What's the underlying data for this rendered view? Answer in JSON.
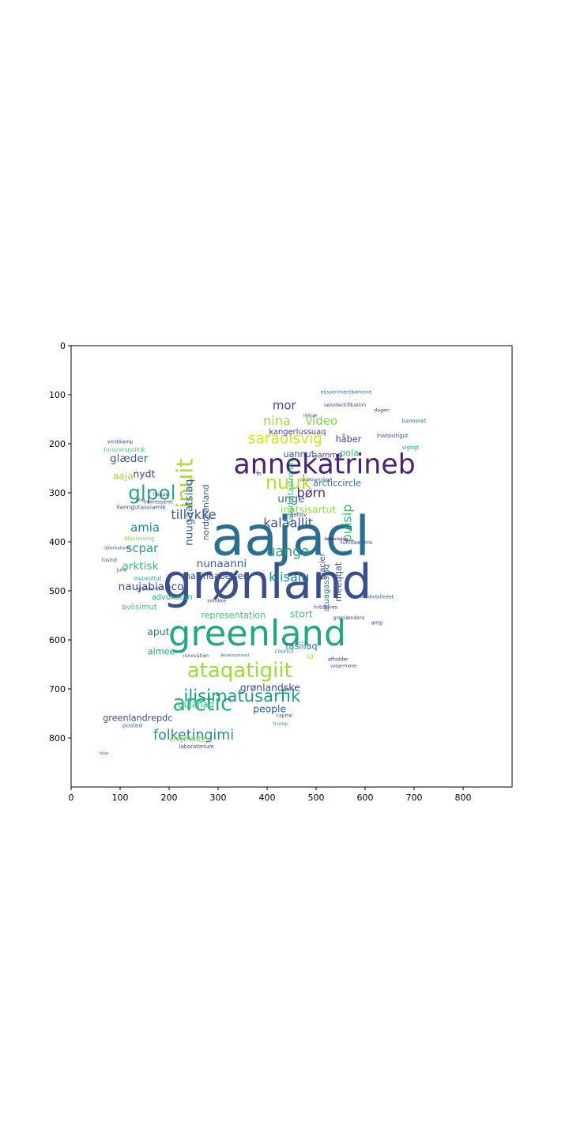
{
  "chart_data": {
    "type": "wordcloud",
    "title": "",
    "xlabel": "",
    "ylabel": "",
    "xlim": [
      0,
      900
    ],
    "ylim": [
      900,
      0
    ],
    "xticks": [
      0,
      100,
      200,
      300,
      400,
      500,
      600,
      700,
      800
    ],
    "yticks": [
      0,
      100,
      200,
      300,
      400,
      500,
      600,
      700,
      800
    ],
    "grid": false,
    "legend": "none",
    "background_color": "#ffffff",
    "colormap": "viridis",
    "words": [
      {
        "text": "aajacl",
        "x": 448,
        "y": 390,
        "size": 110,
        "color": "#2a6f8f",
        "rot": 0
      },
      {
        "text": "grønland",
        "x": 400,
        "y": 483,
        "size": 96,
        "color": "#3b4f8a",
        "rot": 0
      },
      {
        "text": "greenland",
        "x": 380,
        "y": 587,
        "size": 72,
        "color": "#25a585",
        "rot": 0
      },
      {
        "text": "annekatrineb",
        "x": 517,
        "y": 243,
        "size": 56,
        "color": "#482475",
        "rot": 0
      },
      {
        "text": "arctic",
        "x": 268,
        "y": 730,
        "size": 44,
        "color": "#2bb07f",
        "rot": 0
      },
      {
        "text": "ataqatigiit",
        "x": 344,
        "y": 663,
        "size": 42,
        "color": "#9dd93b",
        "rot": 0
      },
      {
        "text": "inuit",
        "x": 232,
        "y": 281,
        "size": 46,
        "color": "#a8db34",
        "rot": 90
      },
      {
        "text": "glpol",
        "x": 165,
        "y": 300,
        "size": 40,
        "color": "#2ea87d",
        "rot": 0
      },
      {
        "text": "nuuk",
        "x": 444,
        "y": 279,
        "size": 38,
        "color": "#b5de2b",
        "rot": 0
      },
      {
        "text": "ilisimatusarfik",
        "x": 349,
        "y": 714,
        "size": 34,
        "color": "#1f9a8a",
        "rot": 0
      },
      {
        "text": "saraolsvig",
        "x": 437,
        "y": 190,
        "size": 30,
        "color": "#d8e219",
        "rot": 0
      },
      {
        "text": "folketingimi",
        "x": 250,
        "y": 795,
        "size": 28,
        "color": "#2c8a8d",
        "rot": 0
      },
      {
        "text": "nina",
        "x": 420,
        "y": 153,
        "size": 26,
        "color": "#a2d939",
        "rot": 0
      },
      {
        "text": "uanga",
        "x": 443,
        "y": 421,
        "size": 28,
        "color": "#2f9e83",
        "rot": 0
      },
      {
        "text": "kalaallit",
        "x": 443,
        "y": 361,
        "size": 26,
        "color": "#3c5588",
        "rot": 0
      },
      {
        "text": "børn",
        "x": 490,
        "y": 300,
        "size": 26,
        "color": "#482878",
        "rot": 0
      },
      {
        "text": "mor",
        "x": 435,
        "y": 122,
        "size": 24,
        "color": "#404688",
        "rot": 0
      },
      {
        "text": "video",
        "x": 511,
        "y": 153,
        "size": 24,
        "color": "#7fd34e",
        "rot": 0
      },
      {
        "text": "puisip",
        "x": 563,
        "y": 362,
        "size": 26,
        "color": "#3aba76",
        "rot": 90
      },
      {
        "text": "tillykke",
        "x": 250,
        "y": 344,
        "size": 26,
        "color": "#38598c",
        "rot": 0
      },
      {
        "text": "nuugaatsiaq",
        "x": 241,
        "y": 340,
        "size": 22,
        "color": "#31688e",
        "rot": 90
      },
      {
        "text": "nunaanni",
        "x": 307,
        "y": 445,
        "size": 22,
        "color": "#365d8d",
        "rot": 0
      },
      {
        "text": "kiisalu",
        "x": 445,
        "y": 472,
        "size": 26,
        "color": "#23888e",
        "rot": 0
      },
      {
        "text": "amia",
        "x": 151,
        "y": 371,
        "size": 24,
        "color": "#25838e",
        "rot": 0
      },
      {
        "text": "scpar",
        "x": 145,
        "y": 413,
        "size": 24,
        "color": "#1f978b",
        "rot": 0
      },
      {
        "text": "naujabianco",
        "x": 163,
        "y": 492,
        "size": 22,
        "color": "#404387",
        "rot": 0
      },
      {
        "text": "arktisk",
        "x": 141,
        "y": 450,
        "size": 22,
        "color": "#35b779",
        "rot": 0
      },
      {
        "text": "glæder",
        "x": 118,
        "y": 231,
        "size": 22,
        "color": "#365c8d",
        "rot": 0
      },
      {
        "text": "aaja",
        "x": 106,
        "y": 265,
        "size": 20,
        "color": "#a0da39",
        "rot": 0
      },
      {
        "text": "nydt",
        "x": 149,
        "y": 261,
        "size": 20,
        "color": "#404387",
        "rot": 0
      },
      {
        "text": "unge",
        "x": 449,
        "y": 313,
        "size": 22,
        "color": "#2f6c8e",
        "rot": 0
      },
      {
        "text": "inatsisartut",
        "x": 484,
        "y": 334,
        "size": 20,
        "color": "#8fd744",
        "rot": 0
      },
      {
        "text": "arcticcircle",
        "x": 543,
        "y": 281,
        "size": 18,
        "color": "#2c718e",
        "rot": 0
      },
      {
        "text": "uannut",
        "x": 465,
        "y": 222,
        "size": 18,
        "color": "#375b8d",
        "rot": 0
      },
      {
        "text": "kangerlussuaq",
        "x": 462,
        "y": 177,
        "size": 16,
        "color": "#404588",
        "rot": 0
      },
      {
        "text": "håber",
        "x": 566,
        "y": 191,
        "size": 18,
        "color": "#3e4989",
        "rot": 0
      },
      {
        "text": "pola",
        "x": 568,
        "y": 219,
        "size": 18,
        "color": "#3fbc73",
        "rot": 0
      },
      {
        "text": "aamma",
        "x": 523,
        "y": 224,
        "size": 16,
        "color": "#433e85",
        "rot": 0
      },
      {
        "text": "naturkatastrofen",
        "x": 449,
        "y": 300,
        "size": 16,
        "color": "#33b57a",
        "rot": 90
      },
      {
        "text": "nordgrønland",
        "x": 276,
        "y": 340,
        "size": 17,
        "color": "#375a8c",
        "rot": 90
      },
      {
        "text": "maliinaabelsen",
        "x": 294,
        "y": 470,
        "size": 18,
        "color": "#3a538b",
        "rot": 0
      },
      {
        "text": "glacier",
        "x": 514,
        "y": 450,
        "size": 16,
        "color": "#3f4889",
        "rot": 90
      },
      {
        "text": "atuagassiaq",
        "x": 522,
        "y": 494,
        "size": 16,
        "color": "#2e6e8e",
        "rot": 90
      },
      {
        "text": "meeqqat",
        "x": 546,
        "y": 482,
        "size": 18,
        "color": "#3a548c",
        "rot": 90
      },
      {
        "text": "representation",
        "x": 331,
        "y": 550,
        "size": 18,
        "color": "#45bf70",
        "rot": 0
      },
      {
        "text": "stort",
        "x": 470,
        "y": 547,
        "size": 20,
        "color": "#4ac16d",
        "rot": 0
      },
      {
        "text": "tasiilaq",
        "x": 470,
        "y": 613,
        "size": 18,
        "color": "#2a788e",
        "rot": 0
      },
      {
        "text": "ia",
        "x": 488,
        "y": 635,
        "size": 16,
        "color": "#b8de29",
        "rot": 0
      },
      {
        "text": "advokaten",
        "x": 206,
        "y": 514,
        "size": 16,
        "color": "#25ab82",
        "rot": 0
      },
      {
        "text": "aviisimut",
        "x": 139,
        "y": 534,
        "size": 16,
        "color": "#40bd72",
        "rot": 0
      },
      {
        "text": "aput",
        "x": 178,
        "y": 583,
        "size": 20,
        "color": "#2c738e",
        "rot": 0
      },
      {
        "text": "aimee",
        "x": 184,
        "y": 624,
        "size": 18,
        "color": "#22a884",
        "rot": 0
      },
      {
        "text": "grønlandske",
        "x": 406,
        "y": 697,
        "size": 20,
        "color": "#3f4788",
        "rot": 0
      },
      {
        "text": "people",
        "x": 405,
        "y": 740,
        "size": 20,
        "color": "#365d8d",
        "rot": 0
      },
      {
        "text": "qujanaq",
        "x": 255,
        "y": 732,
        "size": 18,
        "color": "#2db27d",
        "rot": 0
      },
      {
        "text": "greenlandrepdc",
        "x": 136,
        "y": 760,
        "size": 18,
        "color": "#3d4e8a",
        "rot": 0
      },
      {
        "text": "chemnitz",
        "x": 237,
        "y": 803,
        "size": 16,
        "color": "#73d056",
        "rot": 0
      },
      {
        "text": "ilanngutassiamik",
        "x": 143,
        "y": 329,
        "size": 12,
        "color": "#3b528b",
        "rot": 0
      },
      {
        "text": "discussing",
        "x": 139,
        "y": 393,
        "size": 12,
        "color": "#7ad151",
        "rot": 0
      },
      {
        "text": "inuusuttut",
        "x": 156,
        "y": 475,
        "size": 11,
        "color": "#21918c",
        "rot": 0
      },
      {
        "text": "forsvarspolitik",
        "x": 109,
        "y": 212,
        "size": 12,
        "color": "#4ec36b",
        "rot": 0
      },
      {
        "text": "fn",
        "x": 383,
        "y": 261,
        "size": 11,
        "color": "#440154",
        "rot": 0
      },
      {
        "text": "issue",
        "x": 488,
        "y": 143,
        "size": 11,
        "color": "#3e4a89",
        "rot": 0
      },
      {
        "text": "selvidentifikation",
        "x": 559,
        "y": 122,
        "size": 10,
        "color": "#414487",
        "rot": 0
      },
      {
        "text": "eksperimentbørnene",
        "x": 561,
        "y": 95,
        "size": 10,
        "color": "#2a788e",
        "rot": 0
      },
      {
        "text": "vigtigt",
        "x": 693,
        "y": 208,
        "size": 11,
        "color": "#20a386",
        "rot": 0
      },
      {
        "text": "banneret",
        "x": 700,
        "y": 154,
        "size": 11,
        "color": "#2d708e",
        "rot": 0
      },
      {
        "text": "inatsisitigut",
        "x": 656,
        "y": 184,
        "size": 11,
        "color": "#3b528b",
        "rot": 0
      },
      {
        "text": "dagen",
        "x": 634,
        "y": 132,
        "size": 10,
        "color": "#433d84",
        "rot": 0
      },
      {
        "text": "behov",
        "x": 464,
        "y": 345,
        "size": 11,
        "color": "#404588",
        "rot": 0
      },
      {
        "text": "tunisaanera",
        "x": 582,
        "y": 402,
        "size": 11,
        "color": "#3f4889",
        "rot": 0
      },
      {
        "text": "mediebilledet",
        "x": 624,
        "y": 513,
        "size": 10,
        "color": "#31688e",
        "rot": 0
      },
      {
        "text": "initiatives",
        "x": 519,
        "y": 534,
        "size": 10,
        "color": "#482878",
        "rot": 0
      },
      {
        "text": "grønlændere",
        "x": 567,
        "y": 556,
        "size": 10,
        "color": "#3b528b",
        "rot": 0
      },
      {
        "text": "amp",
        "x": 624,
        "y": 565,
        "size": 11,
        "color": "#3f4889",
        "rot": 0
      },
      {
        "text": "council",
        "x": 435,
        "y": 623,
        "size": 11,
        "color": "#287d8e",
        "rot": 0
      },
      {
        "text": "afholder",
        "x": 545,
        "y": 640,
        "size": 10,
        "color": "#482475",
        "rot": 0
      },
      {
        "text": "capital",
        "x": 435,
        "y": 755,
        "size": 10,
        "color": "#433e85",
        "rot": 0
      },
      {
        "text": "trump",
        "x": 427,
        "y": 772,
        "size": 10,
        "color": "#22a884",
        "rot": 0
      },
      {
        "text": "posted",
        "x": 125,
        "y": 774,
        "size": 12,
        "color": "#2e6f8e",
        "rot": 0
      },
      {
        "text": "laboratorium",
        "x": 256,
        "y": 818,
        "size": 11,
        "color": "#404588",
        "rot": 0
      },
      {
        "text": "innovation",
        "x": 255,
        "y": 633,
        "size": 10,
        "color": "#3b528b",
        "rot": 0
      },
      {
        "text": "grønlandsk",
        "x": 162,
        "y": 497,
        "size": 10,
        "color": "#39568c",
        "rot": 0
      },
      {
        "text": "smukke",
        "x": 297,
        "y": 521,
        "size": 10,
        "color": "#433e85",
        "rot": 0
      },
      {
        "text": "verdikamp",
        "x": 100,
        "y": 197,
        "size": 10,
        "color": "#3e4989",
        "rot": 0
      },
      {
        "text": "alternativet",
        "x": 94,
        "y": 414,
        "size": 9,
        "color": "#3e4a89",
        "rot": 0
      },
      {
        "text": "tusind",
        "x": 78,
        "y": 438,
        "size": 10,
        "color": "#3b528b",
        "rot": 0
      },
      {
        "text": "julie",
        "x": 103,
        "y": 458,
        "size": 10,
        "color": "#404588",
        "rot": 0
      },
      {
        "text": "nike",
        "x": 67,
        "y": 832,
        "size": 9,
        "color": "#2d708e",
        "rot": 0
      },
      {
        "text": "sne",
        "x": 141,
        "y": 315,
        "size": 10,
        "color": "#482878",
        "rot": 0
      },
      {
        "text": "interesseret",
        "x": 178,
        "y": 319,
        "size": 10,
        "color": "#3e4989",
        "rot": 0
      },
      {
        "text": "heppe",
        "x": 183,
        "y": 304,
        "size": 10,
        "color": "#3b528b",
        "rot": 0
      },
      {
        "text": "development",
        "x": 334,
        "y": 632,
        "size": 9,
        "color": "#2c738e",
        "rot": 0
      },
      {
        "text": "valgermøde",
        "x": 556,
        "y": 654,
        "size": 9,
        "color": "#433e85",
        "rot": 0
      },
      {
        "text": "fødselsdag",
        "x": 541,
        "y": 395,
        "size": 9,
        "color": "#440154",
        "rot": 0
      },
      {
        "text": "justitsområdet",
        "x": 500,
        "y": 274,
        "size": 9,
        "color": "#3b528b",
        "rot": 0
      }
    ]
  }
}
